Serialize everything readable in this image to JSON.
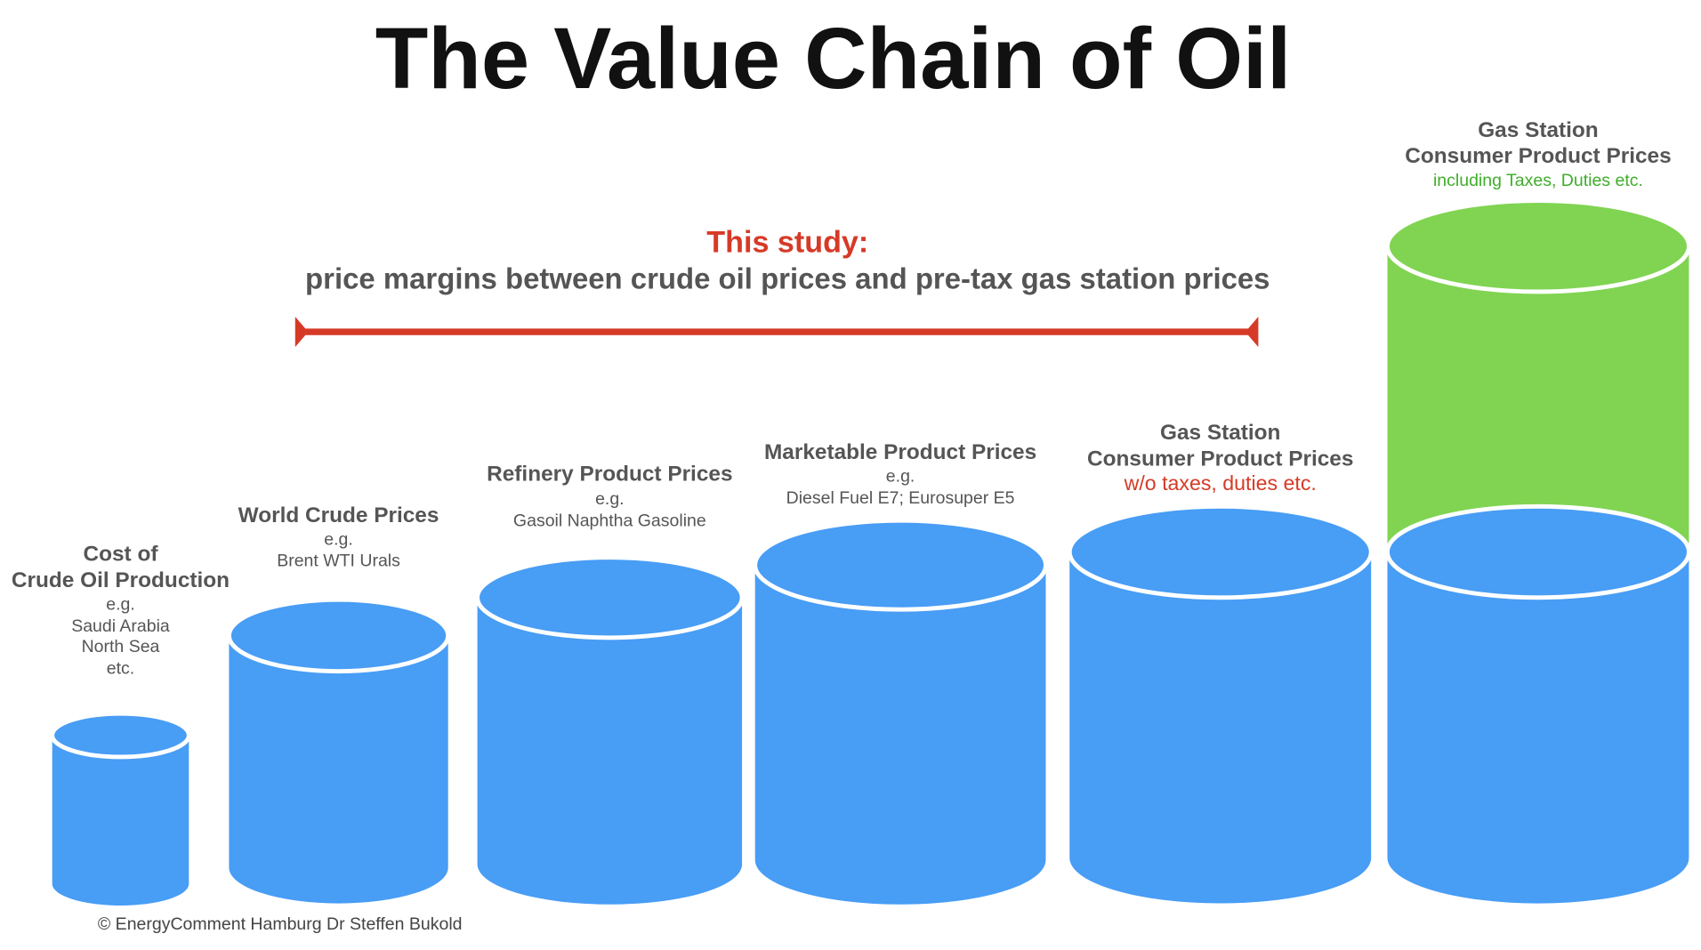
{
  "title": "The Value Chain of Oil",
  "study": {
    "heading": "This study:",
    "text": "price margins between crude oil prices and pre-tax gas station prices"
  },
  "stages": [
    {
      "title": [
        "Cost of",
        "Crude Oil Production"
      ],
      "lines": [
        "e.g.",
        "Saudi Arabia",
        "North Sea",
        "etc."
      ]
    },
    {
      "title": [
        "World Crude Prices"
      ],
      "lines": [
        "e.g.",
        "Brent WTI Urals"
      ]
    },
    {
      "title": [
        "Refinery Product Prices"
      ],
      "lines": [
        "e.g.",
        "Gasoil Naphtha Gasoline"
      ]
    },
    {
      "title": [
        "Marketable Product Prices"
      ],
      "lines": [
        "e.g.",
        "Diesel Fuel E7; Eurosuper E5"
      ]
    },
    {
      "title": [
        "Gas Station",
        "Consumer Product Prices"
      ],
      "note": "w/o taxes, duties etc."
    },
    {
      "title": [
        "Gas Station",
        "Consumer Product Prices"
      ],
      "note": "including Taxes, Duties etc."
    }
  ],
  "footer": "©  EnergyComment Hamburg Dr Steffen Bukold"
}
